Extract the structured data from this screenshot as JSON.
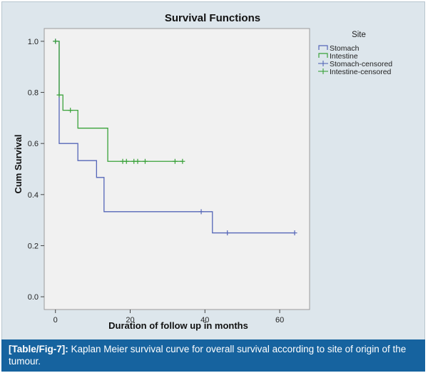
{
  "chart_data": {
    "type": "line",
    "subtype": "kaplan-meier-step",
    "title": "Survival Functions",
    "xlabel": "Duration of follow up in months",
    "ylabel": "Cum Survival",
    "xlim": [
      -3,
      68
    ],
    "ylim": [
      -0.05,
      1.05
    ],
    "xticks": [
      0,
      20,
      40,
      60
    ],
    "yticks": [
      0.0,
      0.2,
      0.4,
      0.6,
      0.8,
      1.0
    ],
    "ytick_labels": [
      "0.0",
      "0.2",
      "0.4",
      "0.6",
      "0.8",
      "1.0"
    ],
    "legend": {
      "title": "Site",
      "placement": "right",
      "entries": [
        "Stomach",
        "Intestine",
        "Stomach-censored",
        "Intestine-censored"
      ]
    },
    "series": [
      {
        "name": "Stomach",
        "color": "#5566b8",
        "steps": [
          [
            0,
            1.0
          ],
          [
            1,
            0.6
          ],
          [
            6,
            0.533
          ],
          [
            11,
            0.467
          ],
          [
            13,
            0.333
          ],
          [
            42,
            0.25
          ],
          [
            64,
            0.25
          ]
        ],
        "censored": [
          [
            0,
            1.0
          ],
          [
            39,
            0.333
          ],
          [
            46,
            0.25
          ],
          [
            64,
            0.25
          ]
        ]
      },
      {
        "name": "Intestine",
        "color": "#3aa23a",
        "steps": [
          [
            0,
            1.0
          ],
          [
            1,
            0.79
          ],
          [
            2,
            0.73
          ],
          [
            6,
            0.66
          ],
          [
            14,
            0.53
          ],
          [
            34,
            0.53
          ]
        ],
        "censored": [
          [
            0,
            1.0
          ],
          [
            1,
            0.79
          ],
          [
            4,
            0.73
          ],
          [
            18,
            0.53
          ],
          [
            19,
            0.53
          ],
          [
            21,
            0.53
          ],
          [
            22,
            0.53
          ],
          [
            24,
            0.53
          ],
          [
            32,
            0.53
          ],
          [
            34,
            0.53
          ]
        ]
      }
    ]
  },
  "caption": {
    "label": "[Table/Fig-7]:",
    "text": "Kaplan Meier survival curve for overall survival according to site of origin of the tumour."
  }
}
